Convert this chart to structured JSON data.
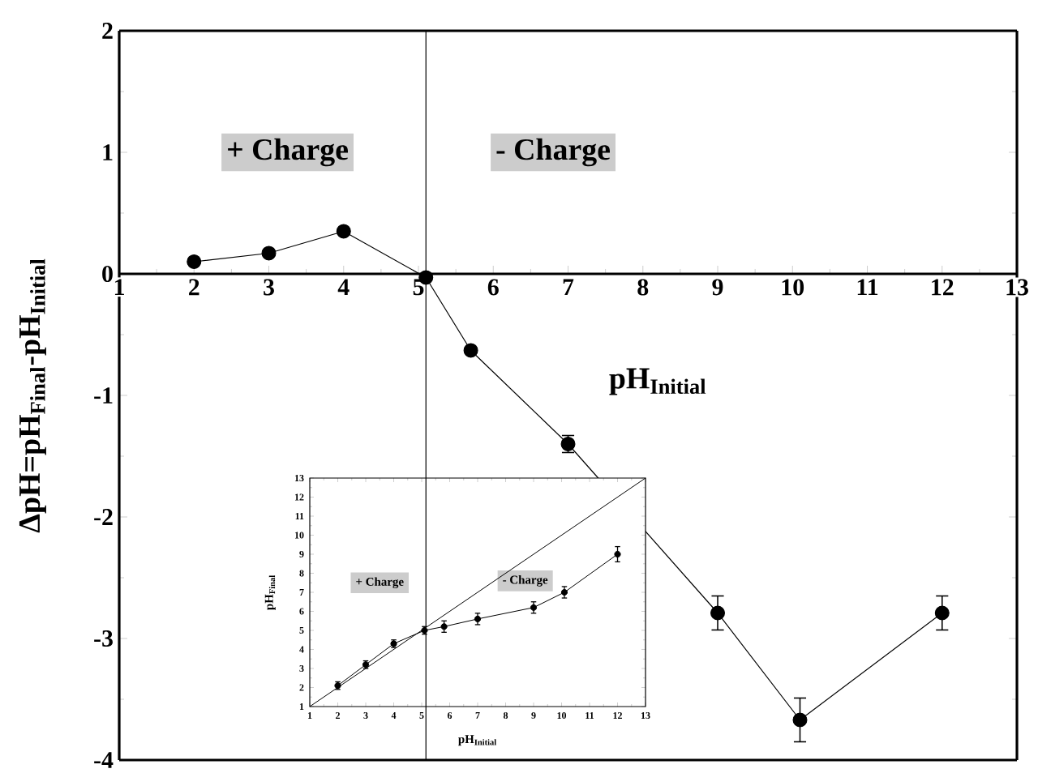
{
  "chart_data": [
    {
      "type": "line",
      "xlabel": "pH$_{Initial}$",
      "ylabel": "ΔpH=pH$_{Final}$-pH$_{Initial}$",
      "x": [
        2,
        3,
        4,
        5.1,
        5.7,
        7,
        9,
        10.1,
        12
      ],
      "values": [
        0.1,
        0.17,
        0.35,
        -0.03,
        -0.63,
        -1.4,
        -2.79,
        -3.67,
        -2.79
      ],
      "errors": [
        null,
        null,
        null,
        null,
        null,
        0.07,
        0.14,
        0.18,
        0.14
      ],
      "color": "#000000",
      "marker": "circle",
      "xlim": [
        1,
        13
      ],
      "ylim": [
        -4,
        2
      ],
      "xticks": [
        1,
        2,
        3,
        4,
        5,
        6,
        7,
        8,
        9,
        10,
        11,
        12,
        13
      ],
      "yticks": [
        -4,
        -3,
        -2,
        -1,
        0,
        1,
        2
      ],
      "ref_lines": [
        {
          "axis": "x",
          "value": 5.1,
          "color": "#000000"
        }
      ],
      "annotations": [
        "+ Charge",
        "- Charge"
      ]
    },
    {
      "type": "line",
      "xlabel": "pH$_{Initial}$",
      "ylabel": "pH$_{Final}$",
      "series": [
        {
          "type": "line",
          "x": [
            2,
            3,
            4,
            5.1,
            5.8,
            7,
            9,
            10.1,
            12
          ],
          "values": [
            2.1,
            3.2,
            4.3,
            5.0,
            5.2,
            5.6,
            6.2,
            7.0,
            9.0
          ],
          "errors": [
            0.2,
            0.2,
            0.2,
            0.2,
            0.3,
            0.3,
            0.3,
            0.3,
            0.4
          ],
          "color": "#000000",
          "marker": "circle"
        },
        {
          "type": "line",
          "x": [
            1,
            13
          ],
          "values": [
            1,
            13
          ],
          "color": "#000000",
          "marker": "none"
        }
      ],
      "xlim": [
        1,
        13
      ],
      "ylim": [
        1,
        13
      ],
      "xticks": [
        1,
        2,
        3,
        4,
        5,
        6,
        7,
        8,
        9,
        10,
        11,
        12,
        13
      ],
      "yticks": [
        1,
        2,
        3,
        4,
        5,
        6,
        7,
        8,
        9,
        10,
        11,
        12,
        13
      ],
      "annotations": [
        "+ Charge",
        "- Charge"
      ]
    }
  ]
}
